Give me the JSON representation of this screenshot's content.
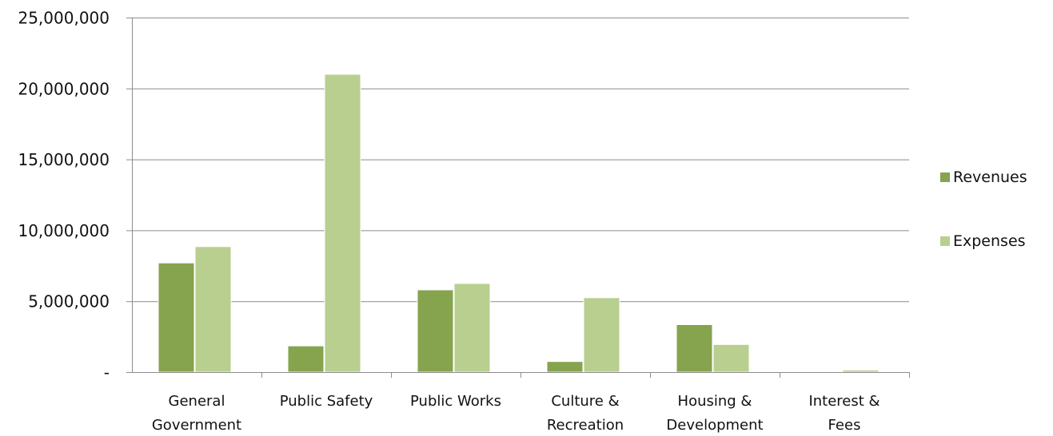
{
  "chart_data": {
    "type": "bar",
    "title": "",
    "xlabel": "",
    "ylabel": "",
    "categories": [
      [
        "General",
        "Government"
      ],
      [
        "Public Safety"
      ],
      [
        "Public Works"
      ],
      [
        "Culture &",
        "Recreation"
      ],
      [
        "Housing &",
        "Development"
      ],
      [
        "Interest &",
        "Fees"
      ]
    ],
    "series": [
      {
        "name": "Revenues",
        "color": "#86a34e",
        "values": [
          7700000,
          1850000,
          5800000,
          750000,
          3350000,
          0
        ]
      },
      {
        "name": "Expenses",
        "color": "#b8cf8f",
        "values": [
          8850000,
          21000000,
          6250000,
          5250000,
          1950000,
          150000
        ]
      }
    ],
    "ylim": [
      0,
      25000000
    ],
    "y_ticks": [
      {
        "value": 0,
        "label": "-"
      },
      {
        "value": 5000000,
        "label": "5,000,000"
      },
      {
        "value": 10000000,
        "label": "10,000,000"
      },
      {
        "value": 15000000,
        "label": "15,000,000"
      },
      {
        "value": 20000000,
        "label": "20,000,000"
      },
      {
        "value": 25000000,
        "label": "25,000,000"
      }
    ],
    "grid": true,
    "legend_position": "right"
  }
}
